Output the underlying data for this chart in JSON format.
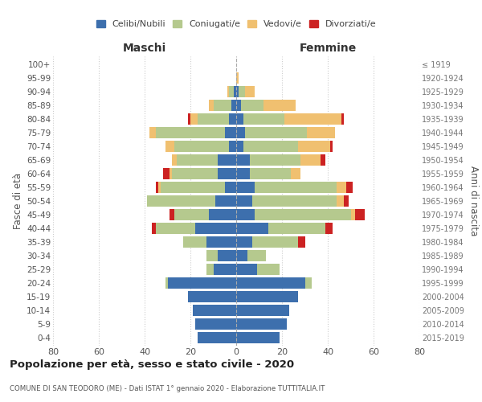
{
  "age_groups": [
    "0-4",
    "5-9",
    "10-14",
    "15-19",
    "20-24",
    "25-29",
    "30-34",
    "35-39",
    "40-44",
    "45-49",
    "50-54",
    "55-59",
    "60-64",
    "65-69",
    "70-74",
    "75-79",
    "80-84",
    "85-89",
    "90-94",
    "95-99",
    "100+"
  ],
  "birth_years": [
    "2015-2019",
    "2010-2014",
    "2005-2009",
    "2000-2004",
    "1995-1999",
    "1990-1994",
    "1985-1989",
    "1980-1984",
    "1975-1979",
    "1970-1974",
    "1965-1969",
    "1960-1964",
    "1955-1959",
    "1950-1954",
    "1945-1949",
    "1940-1944",
    "1935-1939",
    "1930-1934",
    "1925-1929",
    "1920-1924",
    "≤ 1919"
  ],
  "colors": {
    "celibe": "#3d6fad",
    "coniugato": "#b5c98e",
    "vedovo": "#f0c070",
    "divorziato": "#cc2222"
  },
  "maschi": {
    "celibe": [
      17,
      18,
      19,
      21,
      30,
      10,
      8,
      13,
      18,
      12,
      9,
      5,
      8,
      8,
      3,
      5,
      3,
      2,
      1,
      0,
      0
    ],
    "coniugato": [
      0,
      0,
      0,
      0,
      1,
      3,
      5,
      10,
      17,
      15,
      30,
      28,
      20,
      18,
      24,
      30,
      14,
      8,
      2,
      0,
      0
    ],
    "vedovo": [
      0,
      0,
      0,
      0,
      0,
      0,
      0,
      0,
      0,
      0,
      0,
      1,
      1,
      2,
      4,
      3,
      3,
      2,
      1,
      0,
      0
    ],
    "divorziato": [
      0,
      0,
      0,
      0,
      0,
      0,
      0,
      0,
      2,
      2,
      0,
      1,
      3,
      0,
      0,
      0,
      1,
      0,
      0,
      0,
      0
    ]
  },
  "femmine": {
    "nubile": [
      19,
      22,
      23,
      27,
      30,
      9,
      5,
      7,
      14,
      8,
      7,
      8,
      6,
      6,
      3,
      4,
      3,
      2,
      1,
      0,
      0
    ],
    "coniugata": [
      0,
      0,
      0,
      0,
      3,
      10,
      8,
      20,
      25,
      42,
      37,
      36,
      18,
      22,
      24,
      27,
      18,
      10,
      3,
      0,
      0
    ],
    "vedova": [
      0,
      0,
      0,
      0,
      0,
      0,
      0,
      0,
      0,
      2,
      3,
      4,
      4,
      9,
      14,
      12,
      25,
      14,
      4,
      1,
      0
    ],
    "divorziata": [
      0,
      0,
      0,
      0,
      0,
      0,
      0,
      3,
      3,
      4,
      2,
      3,
      0,
      2,
      1,
      0,
      1,
      0,
      0,
      0,
      0
    ]
  },
  "xlim": 80,
  "title": "Popolazione per età, sesso e stato civile - 2020",
  "subtitle": "COMUNE DI SAN TEODORO (ME) - Dati ISTAT 1° gennaio 2020 - Elaborazione TUTTITALIA.IT",
  "ylabel_left": "Fasce di età",
  "ylabel_right": "Anni di nascita",
  "xlabel_maschi": "Maschi",
  "xlabel_femmine": "Femmine",
  "legend_labels": [
    "Celibi/Nubili",
    "Coniugati/e",
    "Vedovi/e",
    "Divorziati/e"
  ]
}
